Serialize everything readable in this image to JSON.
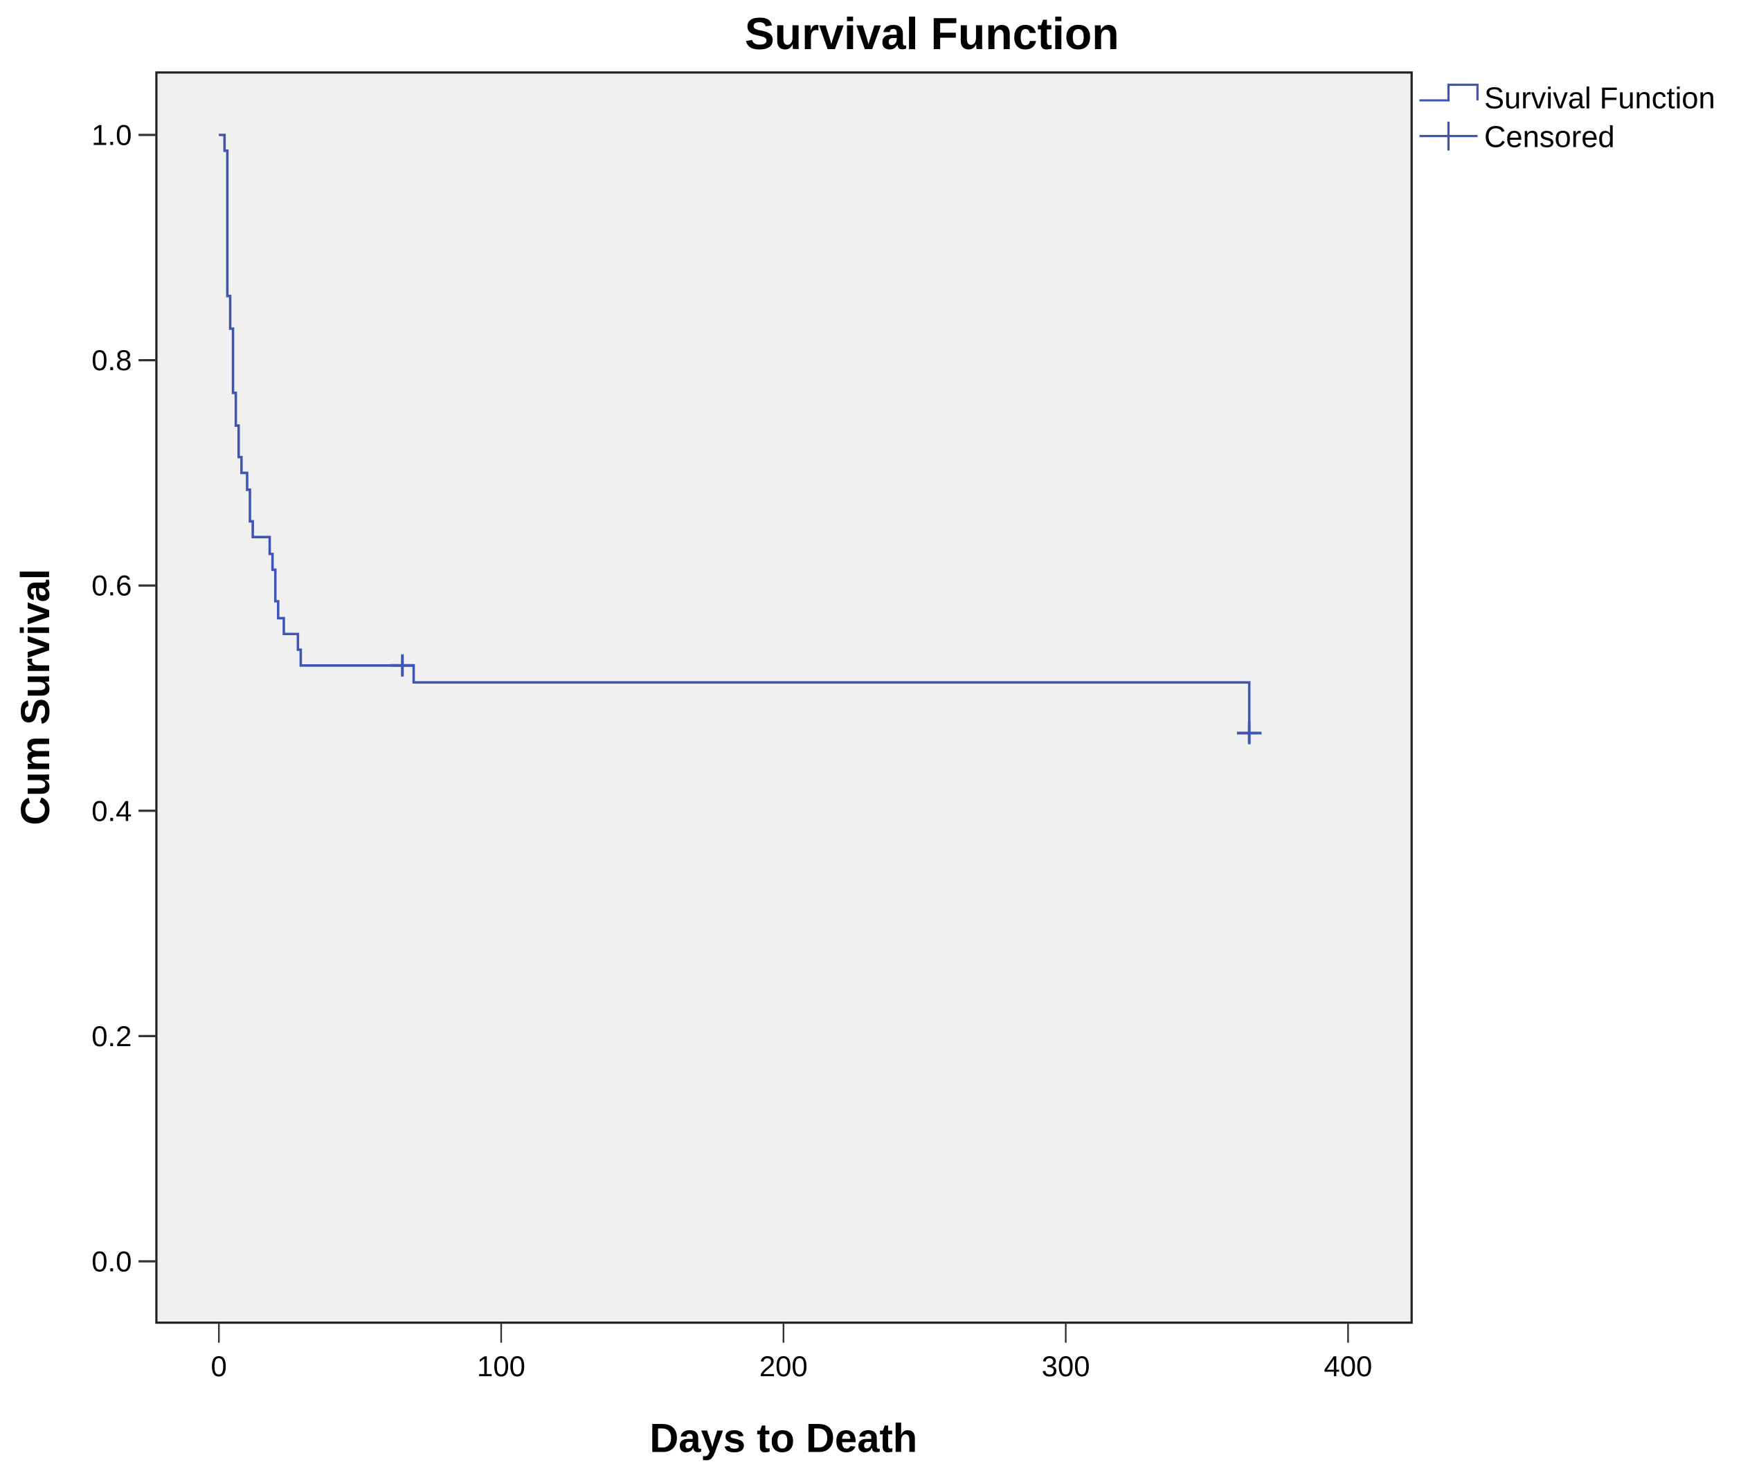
{
  "chart_data": {
    "type": "line",
    "subtype": "kaplan-meier step",
    "title": "Survival Function",
    "xlabel": "Days to Death",
    "ylabel": "Cum Survival",
    "xlim": [
      -22,
      422
    ],
    "ylim": [
      -0.055,
      1.055
    ],
    "xticks": [
      "0",
      "100",
      "200",
      "300",
      "400"
    ],
    "yticks": [
      "0.0",
      "0.2",
      "0.4",
      "0.6",
      "0.8",
      "1.0"
    ],
    "grid": false,
    "legend": {
      "placement": "right-outside",
      "entries": [
        "Survival Function",
        "Censored"
      ]
    },
    "colors": {
      "line": "#3f55b5",
      "plot_bg": "#f0f0f0"
    },
    "series": [
      {
        "name": "Survival Function",
        "steps": [
          {
            "x": 0,
            "y": 1.0
          },
          {
            "x": 2,
            "y": 0.986
          },
          {
            "x": 3,
            "y": 0.857
          },
          {
            "x": 4,
            "y": 0.828
          },
          {
            "x": 5,
            "y": 0.771
          },
          {
            "x": 6,
            "y": 0.742
          },
          {
            "x": 7,
            "y": 0.714
          },
          {
            "x": 8,
            "y": 0.7
          },
          {
            "x": 10,
            "y": 0.685
          },
          {
            "x": 11,
            "y": 0.657
          },
          {
            "x": 12,
            "y": 0.643
          },
          {
            "x": 18,
            "y": 0.628
          },
          {
            "x": 19,
            "y": 0.614
          },
          {
            "x": 20,
            "y": 0.586
          },
          {
            "x": 21,
            "y": 0.571
          },
          {
            "x": 23,
            "y": 0.557
          },
          {
            "x": 28,
            "y": 0.543
          },
          {
            "x": 29,
            "y": 0.529
          },
          {
            "x": 69,
            "y": 0.514
          },
          {
            "x": 365,
            "y": 0.469
          }
        ]
      },
      {
        "name": "Censored",
        "points": [
          {
            "x": 65,
            "y": 0.529
          },
          {
            "x": 365,
            "y": 0.469
          }
        ]
      }
    ]
  }
}
